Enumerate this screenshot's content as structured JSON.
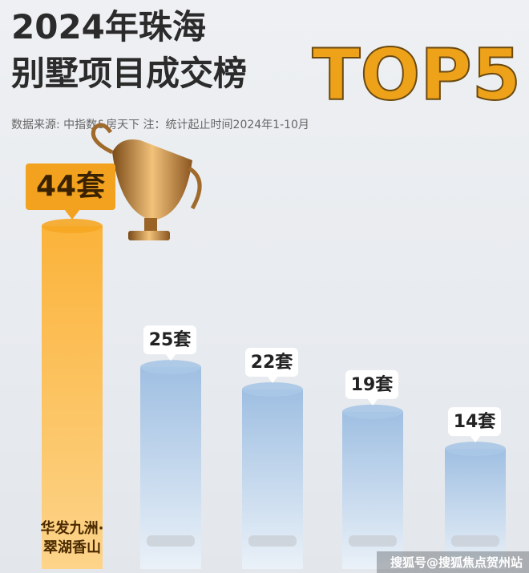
{
  "chart_data": {
    "type": "bar",
    "title": "2024年珠海",
    "title_line2": "别墅项目成交榜",
    "title_badge": "TOP5",
    "subtitle": "数据来源: 中指数&房天下   注：统计起止时间2024年1-10月",
    "categories": [
      "华发九洲·翠湖香山",
      null,
      null,
      null,
      null
    ],
    "values": [
      44,
      25,
      22,
      19,
      14
    ],
    "value_labels": [
      "44套",
      "25套",
      "22套",
      "19套",
      "14套"
    ],
    "colors": [
      "#f6a623",
      "#a9c6e6",
      "#a9c6e6",
      "#a9c6e6",
      "#a9c6e6"
    ],
    "watermark": "搜狐号@搜狐焦点贺州站"
  }
}
